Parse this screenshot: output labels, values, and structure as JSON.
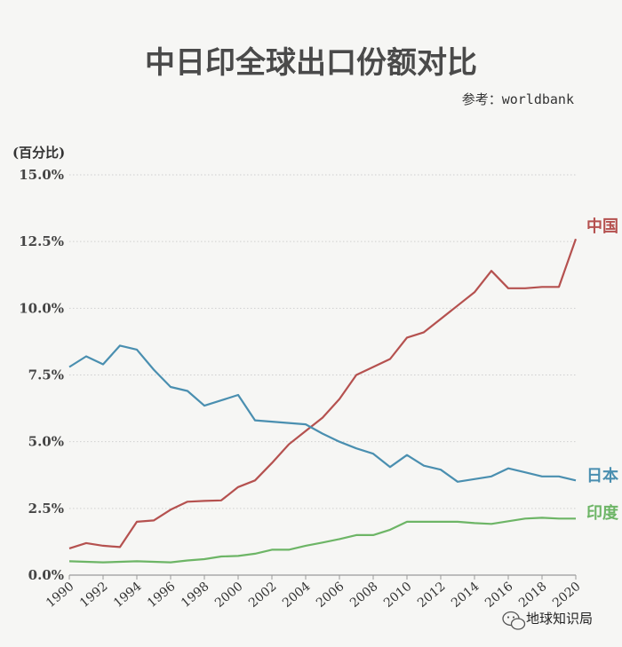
{
  "chart_data": {
    "type": "line",
    "title": "中日印全球出口份额对比",
    "source_label": "参考：worldbank",
    "ylabel": "(百分比)",
    "xlabel": "",
    "ylim": [
      0,
      15
    ],
    "yticks": [
      "0.0%",
      "2.5%",
      "5.0%",
      "7.5%",
      "10.0%",
      "12.5%",
      "15.0%"
    ],
    "xlim": [
      1990,
      2020
    ],
    "x": [
      1990,
      1991,
      1992,
      1993,
      1994,
      1995,
      1996,
      1997,
      1998,
      1999,
      2000,
      2001,
      2002,
      2003,
      2004,
      2005,
      2006,
      2007,
      2008,
      2009,
      2010,
      2011,
      2012,
      2013,
      2014,
      2015,
      2016,
      2017,
      2018,
      2019,
      2020
    ],
    "xtick_labels": [
      "1990",
      "1992",
      "1994",
      "1996",
      "1998",
      "2000",
      "2002",
      "2004",
      "2006",
      "2008",
      "2010",
      "2012",
      "2014",
      "2016",
      "2018",
      "2020"
    ],
    "grid": true,
    "series": [
      {
        "name": "中国",
        "color": "#b5514f",
        "values": [
          1.0,
          1.2,
          1.1,
          1.05,
          2.0,
          2.05,
          2.45,
          2.75,
          2.78,
          2.8,
          3.3,
          3.55,
          4.2,
          4.9,
          5.4,
          5.9,
          6.6,
          7.5,
          7.8,
          8.1,
          8.9,
          9.1,
          9.6,
          10.1,
          10.6,
          11.4,
          10.75,
          10.75,
          10.8,
          10.8,
          12.6
        ]
      },
      {
        "name": "日本",
        "color": "#4a8fb0",
        "values": [
          7.8,
          8.2,
          7.9,
          8.6,
          8.45,
          7.7,
          7.05,
          6.9,
          6.35,
          6.55,
          6.75,
          5.8,
          5.75,
          5.7,
          5.65,
          5.3,
          5.0,
          4.75,
          4.55,
          4.05,
          4.5,
          4.1,
          3.95,
          3.5,
          3.6,
          3.7,
          4.0,
          3.85,
          3.7,
          3.7,
          3.55
        ]
      },
      {
        "name": "印度",
        "color": "#6db566",
        "values": [
          0.52,
          0.5,
          0.48,
          0.5,
          0.52,
          0.5,
          0.48,
          0.55,
          0.6,
          0.7,
          0.72,
          0.8,
          0.95,
          0.95,
          1.1,
          1.22,
          1.35,
          1.5,
          1.5,
          1.7,
          2.0,
          2.0,
          2.0,
          2.0,
          1.95,
          1.92,
          2.02,
          2.12,
          2.15,
          2.12,
          2.12
        ]
      }
    ]
  },
  "watermark": {
    "icon": "wechat-icon",
    "text": "地球知识局"
  }
}
